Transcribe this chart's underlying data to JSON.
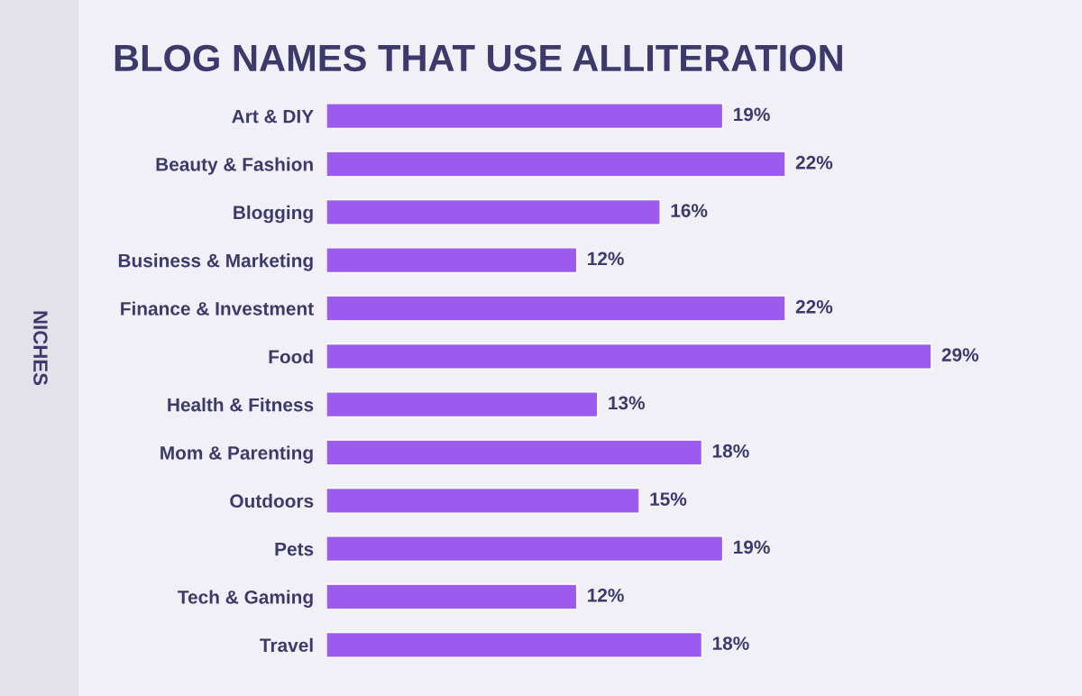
{
  "chart_data": {
    "type": "bar",
    "orientation": "horizontal",
    "title": "BLOG NAMES THAT USE ALLITERATION",
    "ylabel": "NICHES",
    "categories": [
      "Art & DIY",
      "Beauty & Fashion",
      "Blogging",
      "Business & Marketing",
      "Finance & Investment",
      "Food",
      "Health & Fitness",
      "Mom & Parenting",
      "Outdoors",
      "Pets",
      "Tech & Gaming",
      "Travel"
    ],
    "values": [
      19,
      22,
      16,
      12,
      22,
      29,
      13,
      18,
      15,
      19,
      12,
      18
    ],
    "value_labels": [
      "19%",
      "22%",
      "16%",
      "12%",
      "22%",
      "29%",
      "13%",
      "18%",
      "15%",
      "19%",
      "12%",
      "18%"
    ],
    "color": "#9b5bee",
    "grid": false,
    "legend": false
  }
}
